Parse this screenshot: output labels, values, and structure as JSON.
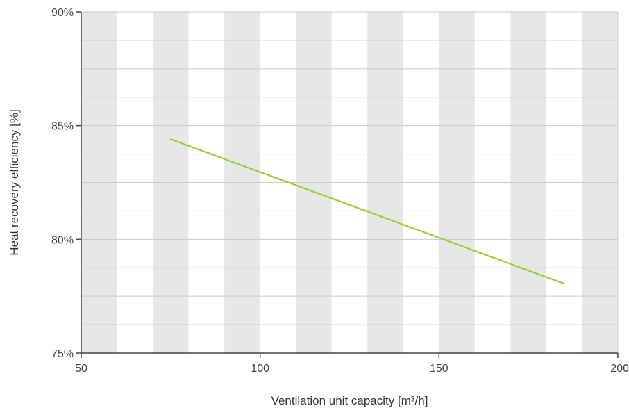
{
  "chart_data": {
    "type": "line",
    "title": "",
    "xlabel": "Ventilation unit capacity [m³/h]",
    "ylabel": "Heat recovery efficiency [%]",
    "xlim": [
      50,
      200
    ],
    "ylim": [
      75,
      90
    ],
    "x_ticks": [
      {
        "value": 50,
        "label": "50"
      },
      {
        "value": 100,
        "label": "100"
      },
      {
        "value": 150,
        "label": "150"
      },
      {
        "value": 200,
        "label": "200"
      }
    ],
    "y_ticks": [
      {
        "value": 75,
        "label": "75%"
      },
      {
        "value": 80,
        "label": "80%"
      },
      {
        "value": 85,
        "label": "85%"
      },
      {
        "value": 90,
        "label": "90%"
      }
    ],
    "y_minor_step": 1.25,
    "background_bands": {
      "step": 10,
      "colors": [
        "#e6e7e9",
        "#ffffff"
      ]
    },
    "grid": true,
    "series": [
      {
        "color": "#99cc33",
        "x": [
          75,
          185
        ],
        "y": [
          84.4,
          78.05
        ]
      }
    ]
  }
}
